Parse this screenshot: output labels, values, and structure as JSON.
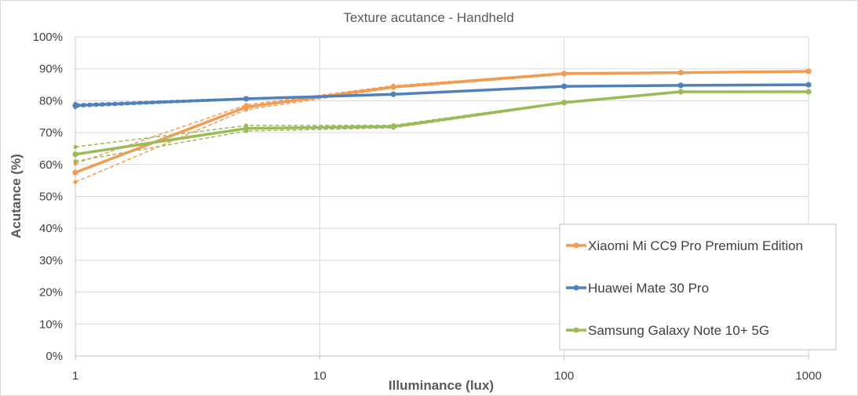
{
  "chart_data": {
    "type": "line",
    "title": "Texture acutance - Handheld",
    "xlabel": "Illuminance (lux)",
    "ylabel": "Acutance (%)",
    "x_scale": "log",
    "xlim": [
      1,
      1000
    ],
    "ylim": [
      0,
      100
    ],
    "x_ticks": [
      {
        "value": 1,
        "label": "1"
      },
      {
        "value": 10,
        "label": "10"
      },
      {
        "value": 100,
        "label": "100"
      },
      {
        "value": 1000,
        "label": "1000"
      }
    ],
    "y_ticks": [
      {
        "value": 0,
        "label": "0%"
      },
      {
        "value": 10,
        "label": "10%"
      },
      {
        "value": 20,
        "label": "20%"
      },
      {
        "value": 30,
        "label": "30%"
      },
      {
        "value": 40,
        "label": "40%"
      },
      {
        "value": 50,
        "label": "50%"
      },
      {
        "value": 60,
        "label": "60%"
      },
      {
        "value": 70,
        "label": "70%"
      },
      {
        "value": 80,
        "label": "80%"
      },
      {
        "value": 90,
        "label": "90%"
      },
      {
        "value": 100,
        "label": "100%"
      }
    ],
    "grid": true,
    "legend_position": "bottom-right",
    "series": [
      {
        "name": "Xiaomi Mi CC9 Pro Premium Edition",
        "color": "#f29c53",
        "x": [
          1,
          5,
          20,
          100,
          300,
          1000
        ],
        "y": [
          57.5,
          78.0,
          84.3,
          88.5,
          88.8,
          89.2
        ],
        "variants": [
          {
            "x": [
              1,
              5,
              20,
              100,
              300,
              1000
            ],
            "y": [
              54.5,
              77.2,
              84.0,
              88.2,
              88.6,
              89.0
            ]
          },
          {
            "x": [
              1,
              5,
              20,
              100,
              300,
              1000
            ],
            "y": [
              60.3,
              78.7,
              84.7,
              88.7,
              89.0,
              89.3
            ]
          }
        ]
      },
      {
        "name": "Huawei Mate 30 Pro",
        "color": "#4f81bd",
        "x": [
          1,
          5,
          20,
          100,
          300,
          1000
        ],
        "y": [
          78.5,
          80.6,
          82.0,
          84.5,
          84.8,
          85.0
        ],
        "variants": [
          {
            "x": [
              1,
              5,
              20,
              100,
              300,
              1000
            ],
            "y": [
              78.0,
              80.4,
              81.9,
              84.4,
              84.7,
              84.9
            ]
          },
          {
            "x": [
              1,
              5,
              20,
              100,
              300,
              1000
            ],
            "y": [
              79.0,
              80.8,
              82.1,
              84.6,
              84.9,
              85.1
            ]
          }
        ]
      },
      {
        "name": "Samsung Galaxy Note 10+ 5G",
        "color": "#9bbb59",
        "x": [
          1,
          5,
          20,
          100,
          300,
          1000
        ],
        "y": [
          63.2,
          71.3,
          71.9,
          79.4,
          82.8,
          82.8
        ],
        "variants": [
          {
            "x": [
              1,
              5,
              20,
              100,
              300,
              1000
            ],
            "y": [
              61.0,
              70.5,
              71.5,
              79.2,
              82.6,
              82.6
            ]
          },
          {
            "x": [
              1,
              5,
              20,
              100,
              300,
              1000
            ],
            "y": [
              65.5,
              72.2,
              72.3,
              79.6,
              83.0,
              83.0
            ]
          }
        ]
      }
    ]
  }
}
